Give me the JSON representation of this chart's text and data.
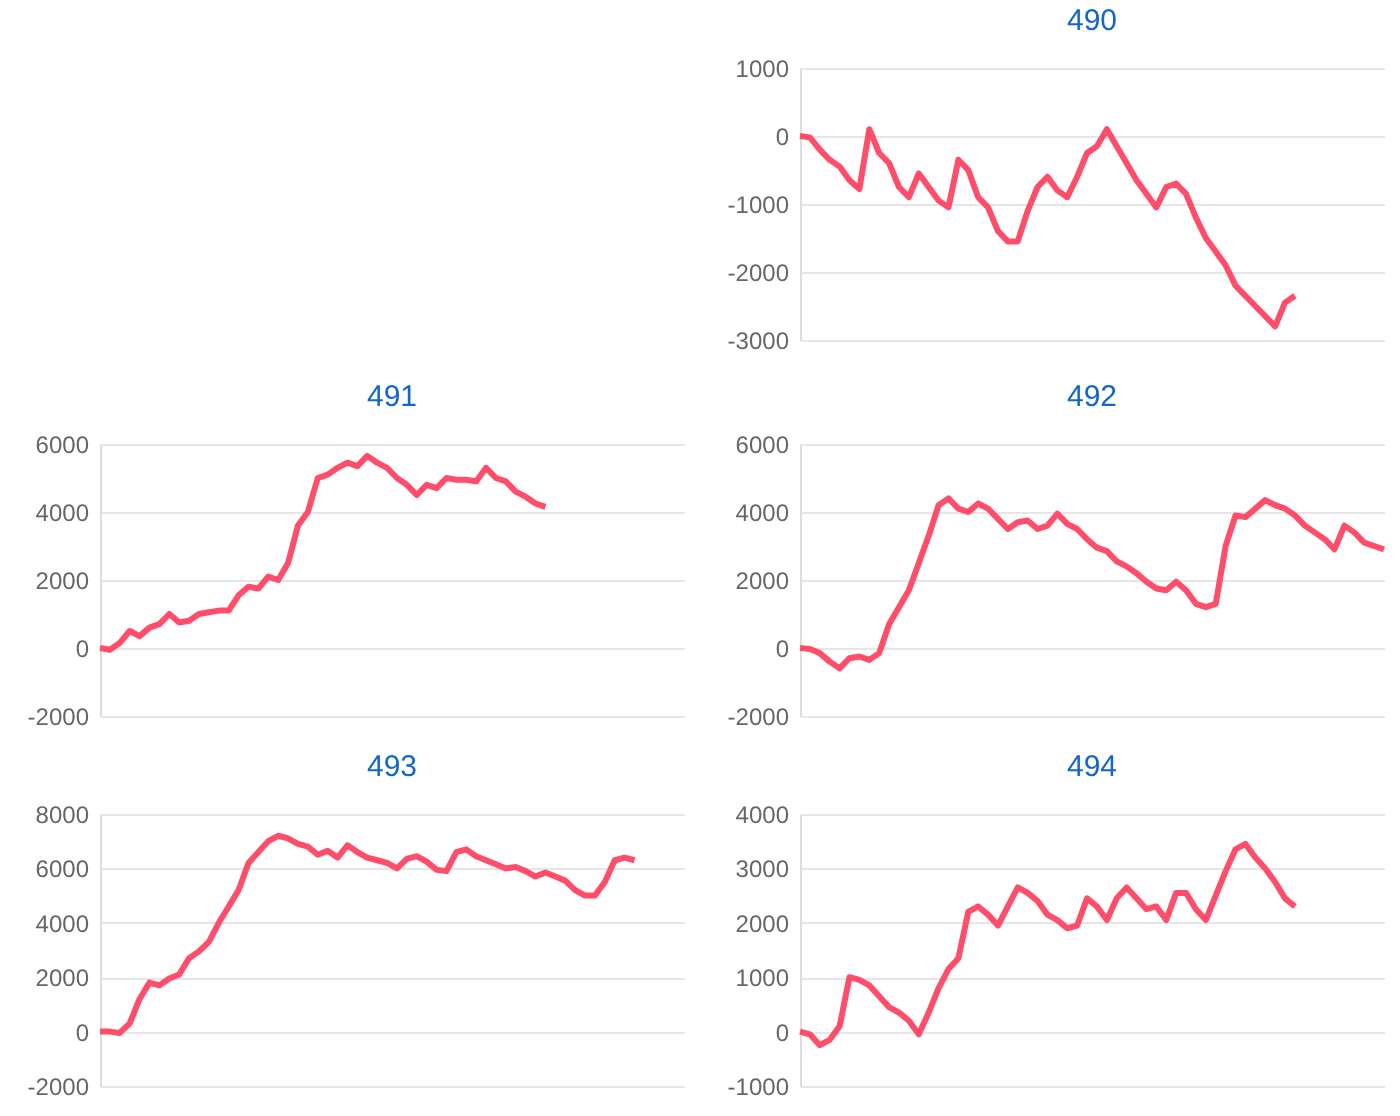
{
  "chart_data": [
    {
      "type": "line",
      "title": "490",
      "categories": [
        null,
        null,
        null,
        null,
        null,
        null,
        null,
        null,
        null,
        null,
        null,
        null,
        null,
        null,
        null,
        null,
        null,
        null,
        null,
        null,
        null,
        null,
        null,
        null,
        null,
        null,
        null,
        null,
        null,
        null,
        null,
        null,
        null,
        null,
        null,
        null,
        null,
        null,
        null,
        null,
        null,
        null,
        null,
        null,
        null,
        null,
        null,
        null,
        null,
        null,
        null,
        null,
        null,
        null,
        null,
        null,
        null,
        null,
        null,
        null
      ],
      "ylim": [
        -3000,
        1000
      ],
      "yticks": [
        -3000,
        -2000,
        -1000,
        0,
        1000
      ],
      "grid": "y",
      "tick_labels": "y",
      "series": [
        {
          "color": "#ff4d6a",
          "values": [
            0,
            -20,
            -200,
            -350,
            -450,
            -650,
            -780,
            100,
            -250,
            -400,
            -750,
            -900,
            -550,
            -750,
            -950,
            -1050,
            -350,
            -500,
            -900,
            -1050,
            -1400,
            -1550,
            -1550,
            -1100,
            -750,
            -600,
            -800,
            -900,
            -600,
            -250,
            -150,
            100,
            -150,
            -400,
            -650,
            -850,
            -1050,
            -750,
            -700,
            -850,
            -1200,
            -1500,
            -1700,
            -1900,
            -2200,
            -2350,
            -2500,
            -2650,
            -2800,
            -2450,
            -2350,
            null,
            null,
            null,
            null,
            null,
            null,
            null,
            null,
            null
          ]
        }
      ]
    },
    {
      "type": "line",
      "title": "491",
      "categories": [
        null,
        null,
        null,
        null,
        null,
        null,
        null,
        null,
        null,
        null,
        null,
        null,
        null,
        null,
        null,
        null,
        null,
        null,
        null,
        null,
        null,
        null,
        null,
        null,
        null,
        null,
        null,
        null,
        null,
        null,
        null,
        null,
        null,
        null,
        null,
        null,
        null,
        null,
        null,
        null,
        null,
        null,
        null,
        null,
        null,
        null,
        null,
        null,
        null,
        null,
        null,
        null,
        null,
        null,
        null,
        null,
        null,
        null,
        null,
        null
      ],
      "ylim": [
        -2000,
        6000
      ],
      "yticks": [
        -2000,
        0,
        2000,
        4000,
        6000
      ],
      "grid": "y",
      "tick_labels": "y",
      "series": [
        {
          "color": "#ff4d6a",
          "values": [
            0,
            -50,
            150,
            500,
            350,
            600,
            700,
            1000,
            750,
            800,
            1000,
            1050,
            1100,
            1100,
            1550,
            1800,
            1750,
            2100,
            2000,
            2500,
            3600,
            4000,
            5000,
            5100,
            5300,
            5450,
            5350,
            5650,
            5450,
            5300,
            5000,
            4800,
            4500,
            4800,
            4700,
            5000,
            4950,
            4950,
            4900,
            5300,
            5000,
            4900,
            4600,
            4450,
            4250,
            4150,
            null,
            null,
            null,
            null,
            null,
            null,
            null,
            null,
            null,
            null,
            null,
            null,
            null,
            null
          ]
        }
      ]
    },
    {
      "type": "line",
      "title": "492",
      "categories": [
        null,
        null,
        null,
        null,
        null,
        null,
        null,
        null,
        null,
        null,
        null,
        null,
        null,
        null,
        null,
        null,
        null,
        null,
        null,
        null,
        null,
        null,
        null,
        null,
        null,
        null,
        null,
        null,
        null,
        null,
        null,
        null,
        null,
        null,
        null,
        null,
        null,
        null,
        null,
        null,
        null,
        null,
        null,
        null,
        null,
        null,
        null,
        null,
        null,
        null,
        null,
        null,
        null,
        null,
        null,
        null,
        null,
        null,
        null,
        null
      ],
      "ylim": [
        -2000,
        6000
      ],
      "yticks": [
        -2000,
        0,
        2000,
        4000,
        6000
      ],
      "grid": "y",
      "tick_labels": "y",
      "series": [
        {
          "color": "#ff4d6a",
          "values": [
            0,
            -30,
            -150,
            -400,
            -600,
            -300,
            -250,
            -350,
            -150,
            700,
            1200,
            1700,
            2500,
            3300,
            4200,
            4400,
            4100,
            4000,
            4250,
            4100,
            3800,
            3500,
            3700,
            3750,
            3500,
            3600,
            3950,
            3650,
            3500,
            3200,
            2950,
            2850,
            2550,
            2400,
            2200,
            1950,
            1750,
            1700,
            1950,
            1700,
            1300,
            1200,
            1300,
            3000,
            3900,
            3850,
            4100,
            4350,
            4200,
            4100,
            3900,
            3600,
            3400,
            3200,
            2900,
            3600,
            3400,
            3100,
            3000,
            2900
          ]
        }
      ]
    },
    {
      "type": "line",
      "title": "493",
      "categories": [
        null,
        null,
        null,
        null,
        null,
        null,
        null,
        null,
        null,
        null,
        null,
        null,
        null,
        null,
        null,
        null,
        null,
        null,
        null,
        null,
        null,
        null,
        null,
        null,
        null,
        null,
        null,
        null,
        null,
        null,
        null,
        null,
        null,
        null,
        null,
        null,
        null,
        null,
        null,
        null,
        null,
        null,
        null,
        null,
        null,
        null,
        null,
        null,
        null,
        null,
        null,
        null,
        null,
        null,
        null,
        null,
        null,
        null,
        null,
        null
      ],
      "ylim": [
        -2000,
        8000
      ],
      "yticks": [
        -2000,
        0,
        2000,
        4000,
        6000,
        8000
      ],
      "grid": "y",
      "tick_labels": "y",
      "series": [
        {
          "color": "#ff4d6a",
          "values": [
            0,
            0,
            -50,
            300,
            1200,
            1800,
            1700,
            1950,
            2100,
            2700,
            2950,
            3300,
            4000,
            4600,
            5200,
            6200,
            6600,
            7000,
            7200,
            7100,
            6900,
            6800,
            6500,
            6650,
            6400,
            6850,
            6600,
            6400,
            6300,
            6200,
            6000,
            6350,
            6450,
            6250,
            5950,
            5900,
            6600,
            6700,
            6450,
            6300,
            6150,
            6000,
            6050,
            5900,
            5700,
            5850,
            5700,
            5550,
            5200,
            5000,
            5000,
            5500,
            6300,
            6400,
            6300,
            null,
            null,
            null,
            null,
            null
          ]
        }
      ]
    },
    {
      "type": "line",
      "title": "494",
      "categories": [
        null,
        null,
        null,
        null,
        null,
        null,
        null,
        null,
        null,
        null,
        null,
        null,
        null,
        null,
        null,
        null,
        null,
        null,
        null,
        null,
        null,
        null,
        null,
        null,
        null,
        null,
        null,
        null,
        null,
        null,
        null,
        null,
        null,
        null,
        null,
        null,
        null,
        null,
        null,
        null,
        null,
        null,
        null,
        null,
        null,
        null,
        null,
        null,
        null,
        null,
        null,
        null,
        null,
        null,
        null,
        null,
        null,
        null,
        null,
        null
      ],
      "ylim": [
        -1000,
        4000
      ],
      "yticks": [
        -1000,
        0,
        1000,
        2000,
        3000,
        4000
      ],
      "grid": "y",
      "tick_labels": "y",
      "series": [
        {
          "color": "#ff4d6a",
          "values": [
            0,
            -50,
            -250,
            -150,
            100,
            1000,
            950,
            850,
            650,
            450,
            350,
            200,
            -50,
            350,
            800,
            1150,
            1350,
            2200,
            2300,
            2150,
            1950,
            2300,
            2650,
            2550,
            2400,
            2150,
            2050,
            1900,
            1950,
            2450,
            2300,
            2050,
            2450,
            2650,
            2450,
            2250,
            2300,
            2050,
            2550,
            2550,
            2250,
            2050,
            2500,
            2950,
            3350,
            3450,
            3200,
            3000,
            2750,
            2450,
            2300,
            null,
            null,
            null,
            null,
            null,
            null,
            null,
            null,
            null
          ]
        }
      ]
    }
  ]
}
